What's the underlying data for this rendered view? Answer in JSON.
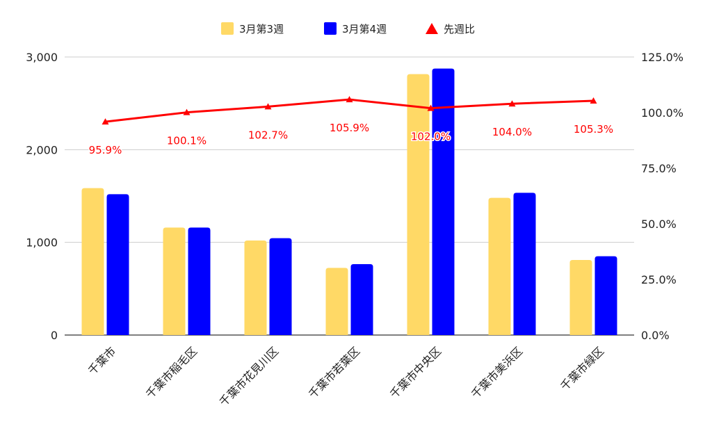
{
  "chart_data": {
    "type": "bar",
    "categories": [
      "千葉市",
      "千葉市稲毛区",
      "千葉市花見川区",
      "千葉市若葉区",
      "千葉市中央区",
      "千葉市美浜区",
      "千葉市緑区"
    ],
    "series": [
      {
        "name": "3月第3週",
        "type": "bar",
        "axis": "left",
        "color": "#ffd966",
        "values": [
          1585,
          1160,
          1020,
          725,
          2815,
          1480,
          810
        ]
      },
      {
        "name": "3月第4週",
        "type": "bar",
        "axis": "left",
        "color": "#0000ff",
        "values": [
          1520,
          1160,
          1045,
          765,
          2875,
          1535,
          850
        ]
      },
      {
        "name": "先週比",
        "type": "line",
        "axis": "right",
        "color": "#ff0000",
        "marker": "triangle",
        "values": [
          95.9,
          100.1,
          102.7,
          105.9,
          102.0,
          104.0,
          105.3
        ],
        "labels": [
          "95.9%",
          "100.1%",
          "102.7%",
          "105.9%",
          "102.0%",
          "104.0%",
          "105.3%"
        ]
      }
    ],
    "left_axis": {
      "ylim": [
        0,
        3000
      ],
      "ticks": [
        0,
        1000,
        2000,
        3000
      ],
      "tick_labels": [
        "0",
        "1,000",
        "2,000",
        "3,000"
      ]
    },
    "right_axis": {
      "ylim": [
        0,
        125
      ],
      "ticks": [
        0,
        25,
        50,
        75,
        100,
        125
      ],
      "tick_labels": [
        "0.0%",
        "25.0%",
        "50.0%",
        "75.0%",
        "100.0%",
        "125.0%"
      ]
    },
    "grid": true,
    "legend": "top"
  }
}
